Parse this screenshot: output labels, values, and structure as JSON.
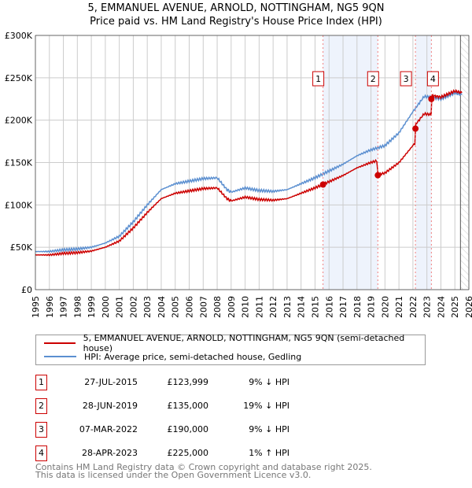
{
  "chart_data": {
    "type": "line",
    "title": "5, EMMANUEL AVENUE, ARNOLD, NOTTINGHAM, NG5 9QN",
    "subtitle": "Price paid vs. HM Land Registry's House Price Index (HPI)",
    "xlim": [
      1995,
      2026
    ],
    "ylim": [
      0,
      300000
    ],
    "x_ticks": [
      "1995",
      "1996",
      "1997",
      "1998",
      "1999",
      "2000",
      "2001",
      "2002",
      "2003",
      "2004",
      "2005",
      "2006",
      "2007",
      "2008",
      "2009",
      "2010",
      "2011",
      "2012",
      "2013",
      "2014",
      "2015",
      "2016",
      "2017",
      "2018",
      "2019",
      "2020",
      "2021",
      "2022",
      "2023",
      "2024",
      "2025",
      "2026"
    ],
    "y_ticks": [
      {
        "v": 0,
        "l": "£0"
      },
      {
        "v": 50000,
        "l": "£50K"
      },
      {
        "v": 100000,
        "l": "£100K"
      },
      {
        "v": 150000,
        "l": "£150K"
      },
      {
        "v": 200000,
        "l": "£200K"
      },
      {
        "v": 250000,
        "l": "£250K"
      },
      {
        "v": 300000,
        "l": "£300K"
      }
    ],
    "grid": true,
    "forecast_start": 2025.4,
    "hpi": {
      "name": "HPI: Average price, semi-detached house, Gedling",
      "color": "#5b8fd0",
      "x": [
        1995,
        1996,
        1997,
        1998,
        1999,
        2000,
        2001,
        2002,
        2003,
        2004,
        2005,
        2006,
        2007,
        2008,
        2008.7,
        2009,
        2010,
        2011,
        2012,
        2013,
        2014,
        2015,
        2016,
        2017,
        2018,
        2019,
        2020,
        2021,
        2022,
        2022.8,
        2023.3,
        2024,
        2025,
        2025.5
      ],
      "y": [
        45000,
        45000,
        47000,
        48000,
        50000,
        55000,
        63000,
        80000,
        100000,
        118000,
        125000,
        128000,
        131000,
        132000,
        118000,
        115000,
        120000,
        117000,
        116000,
        118000,
        125000,
        132000,
        140000,
        148000,
        158000,
        165000,
        170000,
        185000,
        210000,
        228000,
        227000,
        225000,
        232000,
        230000
      ]
    },
    "property": {
      "name": "5, EMMANUEL AVENUE, ARNOLD, NOTTINGHAM, NG5 9QN (semi-detached house)",
      "color": "#cc0000"
    },
    "sales": [
      {
        "n": "1",
        "x": 2015.57,
        "price": 123999,
        "date": "27-JUL-2015",
        "price_label": "£123,999",
        "hpi_label": "9% ↓ HPI"
      },
      {
        "n": "2",
        "x": 2019.49,
        "price": 135000,
        "date": "28-JUN-2019",
        "price_label": "£135,000",
        "hpi_label": "19% ↓ HPI"
      },
      {
        "n": "3",
        "x": 2022.18,
        "price": 190000,
        "date": "07-MAR-2022",
        "price_label": "£190,000",
        "hpi_label": "9% ↓ HPI"
      },
      {
        "n": "4",
        "x": 2023.32,
        "price": 225000,
        "date": "28-APR-2023",
        "price_label": "£225,000",
        "hpi_label": "1% ↑ HPI"
      }
    ]
  },
  "footer": {
    "line1": "Contains HM Land Registry data © Crown copyright and database right 2025.",
    "line2": "This data is licensed under the Open Government Licence v3.0."
  }
}
